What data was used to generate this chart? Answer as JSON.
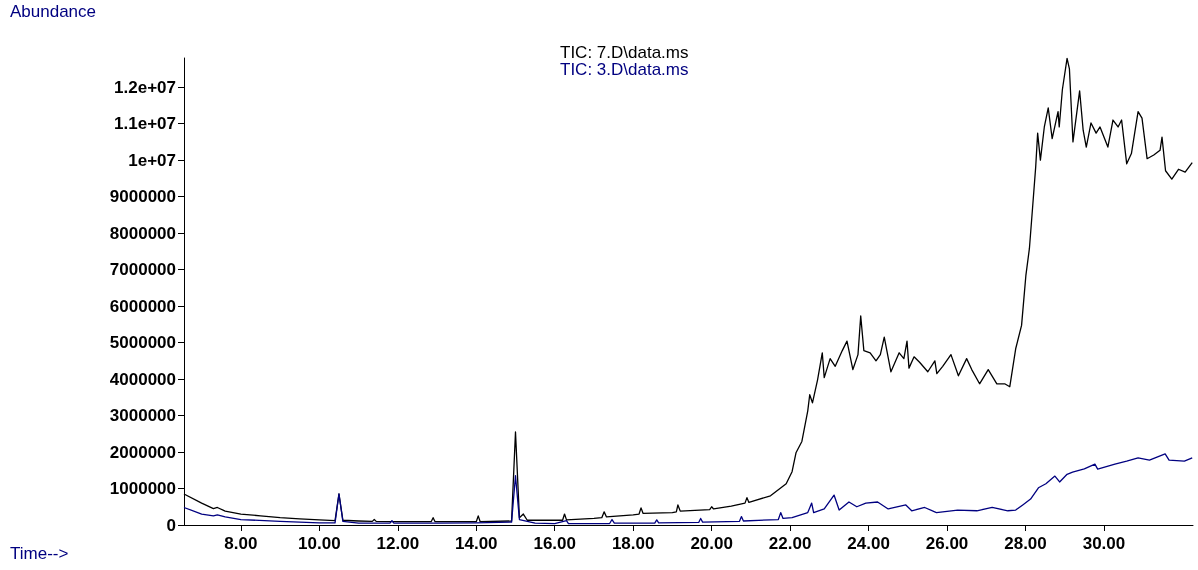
{
  "chart_data": {
    "type": "line",
    "xlabel": "Time-->",
    "ylabel": "Abundance",
    "legend": "top",
    "grid": false,
    "marker": "none",
    "line_style": "solid",
    "xlim": [
      6.55,
      32.27
    ],
    "ylim": [
      0,
      12800000
    ],
    "xticks": [
      {
        "value": 8,
        "label": "8.00"
      },
      {
        "value": 10,
        "label": "10.00"
      },
      {
        "value": 12,
        "label": "12.00"
      },
      {
        "value": 14,
        "label": "14.00"
      },
      {
        "value": 16,
        "label": "16.00"
      },
      {
        "value": 18,
        "label": "18.00"
      },
      {
        "value": 20,
        "label": "20.00"
      },
      {
        "value": 22,
        "label": "22.00"
      },
      {
        "value": 24,
        "label": "24.00"
      },
      {
        "value": 26,
        "label": "26.00"
      },
      {
        "value": 28,
        "label": "28.00"
      },
      {
        "value": 30,
        "label": "30.00"
      }
    ],
    "yticks": [
      0,
      1000000,
      2000000,
      3000000,
      4000000,
      5000000,
      6000000,
      7000000,
      8000000,
      9000000,
      {
        "value": 10000000,
        "label": "1e+07"
      },
      {
        "value": 11000000,
        "label": "1.1e+07"
      },
      {
        "value": 12000000,
        "label": "1.2e+07"
      }
    ],
    "series": [
      {
        "name": "TIC: 7.D\\data.ms",
        "color": "#000000",
        "x": [
          6.55,
          7.0,
          7.3,
          7.4,
          7.6,
          8.0,
          8.5,
          9.0,
          9.5,
          10.0,
          10.4,
          10.5,
          10.6,
          11.0,
          11.35,
          11.4,
          11.45,
          12.0,
          12.85,
          12.9,
          12.95,
          13.5,
          14.0,
          14.05,
          14.1,
          14.9,
          15.0,
          15.1,
          15.2,
          15.3,
          16.0,
          16.2,
          16.25,
          16.3,
          17.0,
          17.2,
          17.26,
          17.32,
          18.0,
          18.15,
          18.2,
          18.25,
          19.0,
          19.1,
          19.14,
          19.2,
          19.95,
          20.0,
          20.05,
          20.5,
          20.85,
          20.9,
          20.95,
          21.5,
          21.9,
          22.05,
          22.15,
          22.3,
          22.45,
          22.5,
          22.57,
          22.7,
          22.82,
          22.87,
          23.02,
          23.15,
          23.33,
          23.45,
          23.6,
          23.73,
          23.8,
          23.88,
          24.04,
          24.19,
          24.3,
          24.4,
          24.57,
          24.78,
          24.9,
          24.98,
          25.03,
          25.16,
          25.3,
          25.51,
          25.69,
          25.74,
          25.89,
          26.1,
          26.29,
          26.5,
          26.63,
          26.83,
          27.05,
          27.27,
          27.47,
          27.6,
          27.75,
          27.9,
          28.01,
          28.1,
          28.18,
          28.26,
          28.31,
          28.38,
          28.48,
          28.58,
          28.68,
          28.83,
          28.86,
          28.94,
          29.06,
          29.12,
          29.21,
          29.38,
          29.47,
          29.55,
          29.67,
          29.8,
          29.9,
          30.1,
          30.23,
          30.36,
          30.45,
          30.58,
          30.7,
          30.87,
          30.97,
          31.1,
          31.27,
          31.43,
          31.48,
          31.57,
          31.73,
          31.9,
          32.07,
          32.25
        ],
        "values": [
          850000,
          600000,
          450000,
          480000,
          380000,
          300000,
          250000,
          200000,
          170000,
          140000,
          120000,
          850000,
          130000,
          110000,
          100000,
          150000,
          100000,
          90000,
          90000,
          200000,
          90000,
          90000,
          90000,
          250000,
          90000,
          110000,
          2550000,
          200000,
          300000,
          130000,
          130000,
          130000,
          300000,
          140000,
          180000,
          200000,
          360000,
          220000,
          280000,
          300000,
          470000,
          320000,
          340000,
          360000,
          550000,
          380000,
          420000,
          500000,
          440000,
          520000,
          600000,
          750000,
          620000,
          800000,
          1130000,
          1460000,
          1980000,
          2290000,
          3130000,
          3570000,
          3350000,
          3980000,
          4720000,
          4040000,
          4560000,
          4350000,
          4780000,
          5040000,
          4260000,
          4670000,
          5730000,
          4780000,
          4720000,
          4500000,
          4670000,
          5150000,
          4200000,
          4720000,
          4560000,
          5040000,
          4300000,
          4610000,
          4460000,
          4200000,
          4500000,
          4150000,
          4350000,
          4670000,
          4090000,
          4560000,
          4260000,
          3870000,
          4260000,
          3870000,
          3870000,
          3790000,
          4830000,
          5470000,
          6840000,
          7580000,
          8690000,
          9810000,
          10740000,
          10000000,
          10910000,
          11430000,
          10590000,
          11330000,
          10910000,
          11930000,
          12790000,
          12500000,
          10500000,
          11900000,
          10820000,
          10360000,
          11020000,
          10740000,
          10910000,
          10360000,
          11100000,
          10910000,
          11100000,
          9900000,
          10180000,
          11330000,
          11150000,
          10040000,
          10140000,
          10270000,
          10630000,
          9710000,
          9480000,
          9750000,
          9670000,
          9930000
        ]
      },
      {
        "name": "TIC: 3.D\\data.ms",
        "color": "#000080",
        "x": [
          6.55,
          7.0,
          7.3,
          7.4,
          7.6,
          8.0,
          9.0,
          10.0,
          10.4,
          10.5,
          10.6,
          11.0,
          11.8,
          11.85,
          11.9,
          13.0,
          14.0,
          14.9,
          15.0,
          15.1,
          15.5,
          16.0,
          16.3,
          16.35,
          17.4,
          17.46,
          17.52,
          18.55,
          18.6,
          18.65,
          19.67,
          19.72,
          19.77,
          20.71,
          20.76,
          20.81,
          21.7,
          21.76,
          21.82,
          22.05,
          22.45,
          22.55,
          22.6,
          22.87,
          23.12,
          23.25,
          23.5,
          23.7,
          23.93,
          24.23,
          24.5,
          24.95,
          25.1,
          25.43,
          25.73,
          26.27,
          26.76,
          27.15,
          27.55,
          27.75,
          27.93,
          28.13,
          28.33,
          28.52,
          28.75,
          28.87,
          29.06,
          29.2,
          29.5,
          29.77,
          29.84,
          30.28,
          30.58,
          30.87,
          31.16,
          31.56,
          31.66,
          32.05,
          32.25
        ],
        "values": [
          480000,
          300000,
          250000,
          280000,
          220000,
          150000,
          100000,
          60000,
          60000,
          850000,
          100000,
          50000,
          50000,
          120000,
          50000,
          50000,
          60000,
          80000,
          1350000,
          150000,
          50000,
          40000,
          120000,
          40000,
          40000,
          150000,
          50000,
          50000,
          140000,
          60000,
          70000,
          180000,
          80000,
          100000,
          230000,
          110000,
          150000,
          340000,
          180000,
          200000,
          340000,
          600000,
          340000,
          440000,
          820000,
          410000,
          630000,
          500000,
          600000,
          630000,
          440000,
          550000,
          390000,
          480000,
          340000,
          410000,
          390000,
          480000,
          390000,
          410000,
          550000,
          710000,
          1020000,
          1130000,
          1340000,
          1180000,
          1390000,
          1450000,
          1540000,
          1670000,
          1530000,
          1670000,
          1750000,
          1840000,
          1780000,
          1950000,
          1780000,
          1750000,
          1840000
        ]
      }
    ]
  }
}
